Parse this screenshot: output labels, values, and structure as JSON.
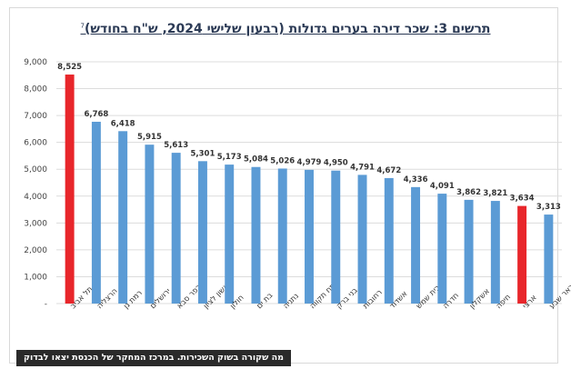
{
  "chart_data": {
    "type": "bar",
    "title": "תרשים 3: שכר דירה בערים גדולות (רבעון שלישי 2024, ש\"ח בחודש)",
    "title_footnote": "7",
    "categories": [
      "תל אביב",
      "הרצליה",
      "רמת גן",
      "ירושלים",
      "כפר סבא",
      "ראשון לציון",
      "חולון",
      "בת ים",
      "נתניה",
      "פתח תקווה",
      "בני ברק",
      "רחובות",
      "אשדוד",
      "בית שמש",
      "חדרה",
      "אשקלון",
      "חיפה",
      "ארצי",
      "באר שבע"
    ],
    "values": [
      8525,
      6768,
      6418,
      5915,
      5613,
      5301,
      5173,
      5084,
      5026,
      4979,
      4950,
      4791,
      4672,
      4336,
      4091,
      3862,
      3821,
      3634,
      3313
    ],
    "value_labels": [
      "8,525",
      "6,768",
      "6,418",
      "5,915",
      "5,613",
      "5,301",
      "5,173",
      "5,084",
      "5,026",
      "4,979",
      "4,950",
      "4,791",
      "4,672",
      "4,336",
      "4,091",
      "3,862",
      "3,821",
      "3,634",
      "3,313"
    ],
    "highlight_indices": [
      0,
      17
    ],
    "colors": {
      "default": "#5b9bd5",
      "highlight": "#e8262b"
    },
    "ylim": [
      0,
      9000
    ],
    "yticks": [
      "-",
      "1,000",
      "2,000",
      "3,000",
      "4,000",
      "5,000",
      "6,000",
      "7,000",
      "8,000",
      "9,000"
    ],
    "grid": true,
    "xlabel": "",
    "ylabel": ""
  },
  "caption": "מה שקורה בשוק השכירות. במרכז המחקר של הכנסת יצאו לבדוק"
}
